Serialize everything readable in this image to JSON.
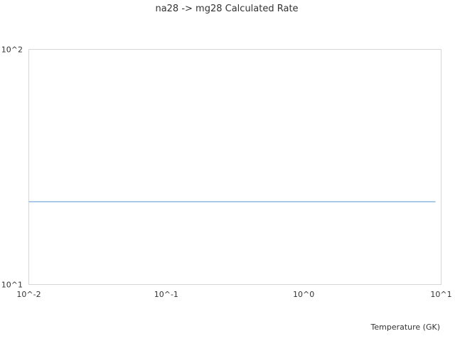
{
  "chart_data": {
    "type": "line",
    "title": "na28 -> mg28 Calculated Rate",
    "xlabel": "Temperature (GK)",
    "ylabel": "",
    "x_scale": "log",
    "y_scale": "log",
    "xlim": [
      0.01,
      10
    ],
    "ylim": [
      10,
      100
    ],
    "x_ticks": [
      "10^-2",
      "10^-1",
      "10^0",
      "10^1"
    ],
    "y_ticks": [
      "10^1",
      "10^2"
    ],
    "grid": false,
    "series": [
      {
        "color": "#6a9fd8",
        "x": [
          0.01,
          9.1
        ],
        "y": [
          22.5,
          22.5
        ]
      }
    ]
  }
}
